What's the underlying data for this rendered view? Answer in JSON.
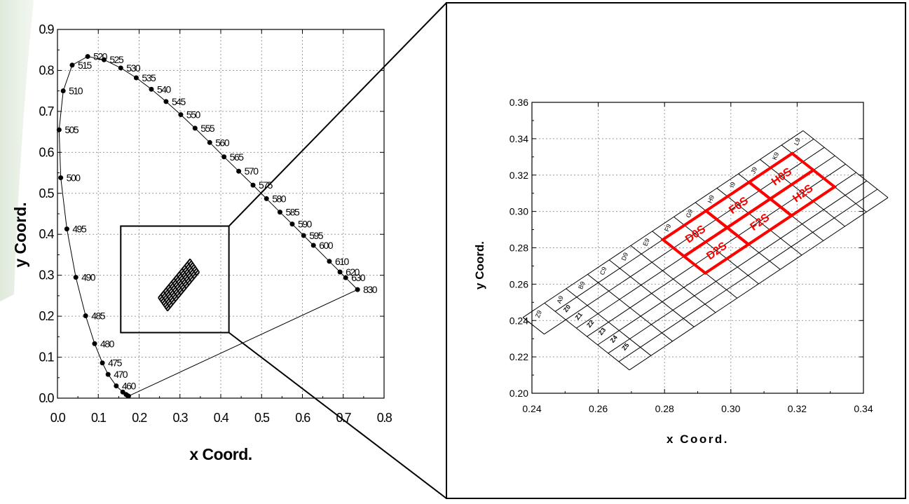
{
  "chart_data": [
    {
      "type": "scatter",
      "xlabel": "x Coord.",
      "ylabel": "y Coord.",
      "xlim": [
        0.0,
        0.8
      ],
      "ylim": [
        0.0,
        0.9
      ],
      "xticks": [
        "0.0",
        "0.1",
        "0.2",
        "0.3",
        "0.4",
        "0.5",
        "0.6",
        "0.7",
        "0.8"
      ],
      "yticks": [
        "0.0",
        "0.1",
        "0.2",
        "0.3",
        "0.4",
        "0.5",
        "0.6",
        "0.7",
        "0.8",
        "0.9"
      ],
      "grid": true,
      "series": [
        {
          "labels": [
            "460",
            "470",
            "475",
            "480",
            "485",
            "490",
            "495",
            "500",
            "505",
            "510",
            "515",
            "520",
            "525",
            "530",
            "535",
            "540",
            "545",
            "550",
            "555",
            "560",
            "565",
            "570",
            "575",
            "580",
            "585",
            "590",
            "595",
            "600",
            "610",
            "620",
            "630",
            "830"
          ],
          "x": [
            0.144,
            0.124,
            0.11,
            0.091,
            0.069,
            0.045,
            0.023,
            0.008,
            0.004,
            0.014,
            0.036,
            0.074,
            0.114,
            0.155,
            0.193,
            0.23,
            0.266,
            0.302,
            0.337,
            0.373,
            0.408,
            0.444,
            0.479,
            0.512,
            0.545,
            0.575,
            0.603,
            0.627,
            0.666,
            0.692,
            0.706,
            0.735
          ],
          "y": [
            0.03,
            0.058,
            0.086,
            0.133,
            0.201,
            0.295,
            0.413,
            0.538,
            0.655,
            0.75,
            0.813,
            0.834,
            0.826,
            0.806,
            0.782,
            0.754,
            0.724,
            0.692,
            0.659,
            0.624,
            0.589,
            0.554,
            0.52,
            0.487,
            0.454,
            0.425,
            0.397,
            0.373,
            0.334,
            0.308,
            0.294,
            0.265
          ]
        }
      ],
      "tail_points": {
        "x": [
          0.16,
          0.168,
          0.172,
          0.174
        ],
        "y": [
          0.015,
          0.009,
          0.006,
          0.005
        ]
      },
      "inset_box": {
        "xlim": [
          0.155,
          0.42
        ],
        "ylim": [
          0.16,
          0.42
        ]
      }
    },
    {
      "type": "scatter",
      "xlabel": "x Coord.",
      "ylabel": "y Coord.",
      "xlim": [
        0.24,
        0.34
      ],
      "ylim": [
        0.2,
        0.36
      ],
      "xticks": [
        "0.24",
        "0.26",
        "0.28",
        "0.30",
        "0.32",
        "0.34"
      ],
      "yticks": [
        "0.20",
        "0.22",
        "0.24",
        "0.26",
        "0.28",
        "0.30",
        "0.32",
        "0.34",
        "0.36"
      ],
      "grid": true,
      "bin_grid": {
        "top_left": [
          0.247,
          0.245
        ],
        "col_step": [
          0.0065,
          0.0079
        ],
        "row_step": [
          0.0032,
          -0.0046
        ],
        "cols": 12,
        "rows": 7
      },
      "column_labels": [
        "Z9",
        "A9",
        "B9",
        "C9",
        "D9",
        "E9",
        "F9",
        "G9",
        "H9",
        "I9",
        "J9",
        "K9",
        "L9"
      ],
      "row_labels": [
        "Z0",
        "Z1",
        "Z2",
        "Z3",
        "Z4",
        "Z5"
      ],
      "highlighted_bins": [
        {
          "label": "D0S",
          "col": 5,
          "row": 0,
          "w": 2,
          "h": 2
        },
        {
          "label": "F0S",
          "col": 7,
          "row": 0,
          "w": 2,
          "h": 2
        },
        {
          "label": "H0S",
          "col": 9,
          "row": 0,
          "w": 2,
          "h": 2
        },
        {
          "label": "D2S",
          "col": 5,
          "row": 2,
          "w": 2,
          "h": 2
        },
        {
          "label": "F2S",
          "col": 7,
          "row": 2,
          "w": 2,
          "h": 2
        },
        {
          "label": "H2S",
          "col": 9,
          "row": 2,
          "w": 2,
          "h": 2
        }
      ],
      "highlight_color": "#ff0000"
    }
  ]
}
